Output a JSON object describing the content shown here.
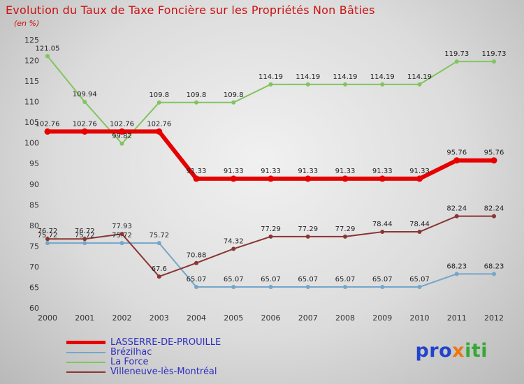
{
  "header": {
    "title": "Evolution du Taux de Taxe Foncière sur les Propriétés Non Bâties",
    "subtitle": "(en %)"
  },
  "chart_data": {
    "type": "line",
    "title": "Evolution du Taux de Taxe Foncière sur les Propriétés Non Bâties",
    "subtitle": "(en %)",
    "x": [
      2000,
      2001,
      2002,
      2003,
      2004,
      2005,
      2006,
      2007,
      2008,
      2009,
      2010,
      2011,
      2012
    ],
    "ylim": [
      60,
      125
    ],
    "ytick_step": 5,
    "grid": false,
    "legend_position": "bottom-left",
    "series": [
      {
        "name": "LASSERRE-DE-PROUILLE",
        "color": "#e60000",
        "line_width": 6,
        "values": [
          102.76,
          102.76,
          102.76,
          102.76,
          91.33,
          91.33,
          91.33,
          91.33,
          91.33,
          91.33,
          91.33,
          95.76,
          95.76
        ]
      },
      {
        "name": "Brézilhac",
        "color": "#74a6c9",
        "line_width": 2,
        "values": [
          75.72,
          75.72,
          75.72,
          75.72,
          65.07,
          65.07,
          65.07,
          65.07,
          65.07,
          65.07,
          65.07,
          68.23,
          68.23
        ]
      },
      {
        "name": "La Force",
        "color": "#82c45e",
        "line_width": 2,
        "values": [
          121.05,
          109.94,
          99.82,
          109.8,
          109.8,
          109.8,
          114.19,
          114.19,
          114.19,
          114.19,
          114.19,
          119.73,
          119.73
        ]
      },
      {
        "name": "Villeneuve-lès-Montréal",
        "color": "#8a3533",
        "line_width": 2,
        "values": [
          76.72,
          76.72,
          77.93,
          67.6,
          70.88,
          74.32,
          77.29,
          77.29,
          77.29,
          78.44,
          78.44,
          82.24,
          82.24
        ]
      }
    ],
    "axis_text_color": "#333333",
    "label_text_color": "#222222"
  },
  "legend": {
    "text_color": "#2f2fc0"
  },
  "logo": {
    "parts": [
      {
        "text": "pro",
        "color": "#2244cc"
      },
      {
        "text": "x",
        "color": "#ee7711"
      },
      {
        "text": "iti",
        "color": "#33a933"
      }
    ]
  }
}
